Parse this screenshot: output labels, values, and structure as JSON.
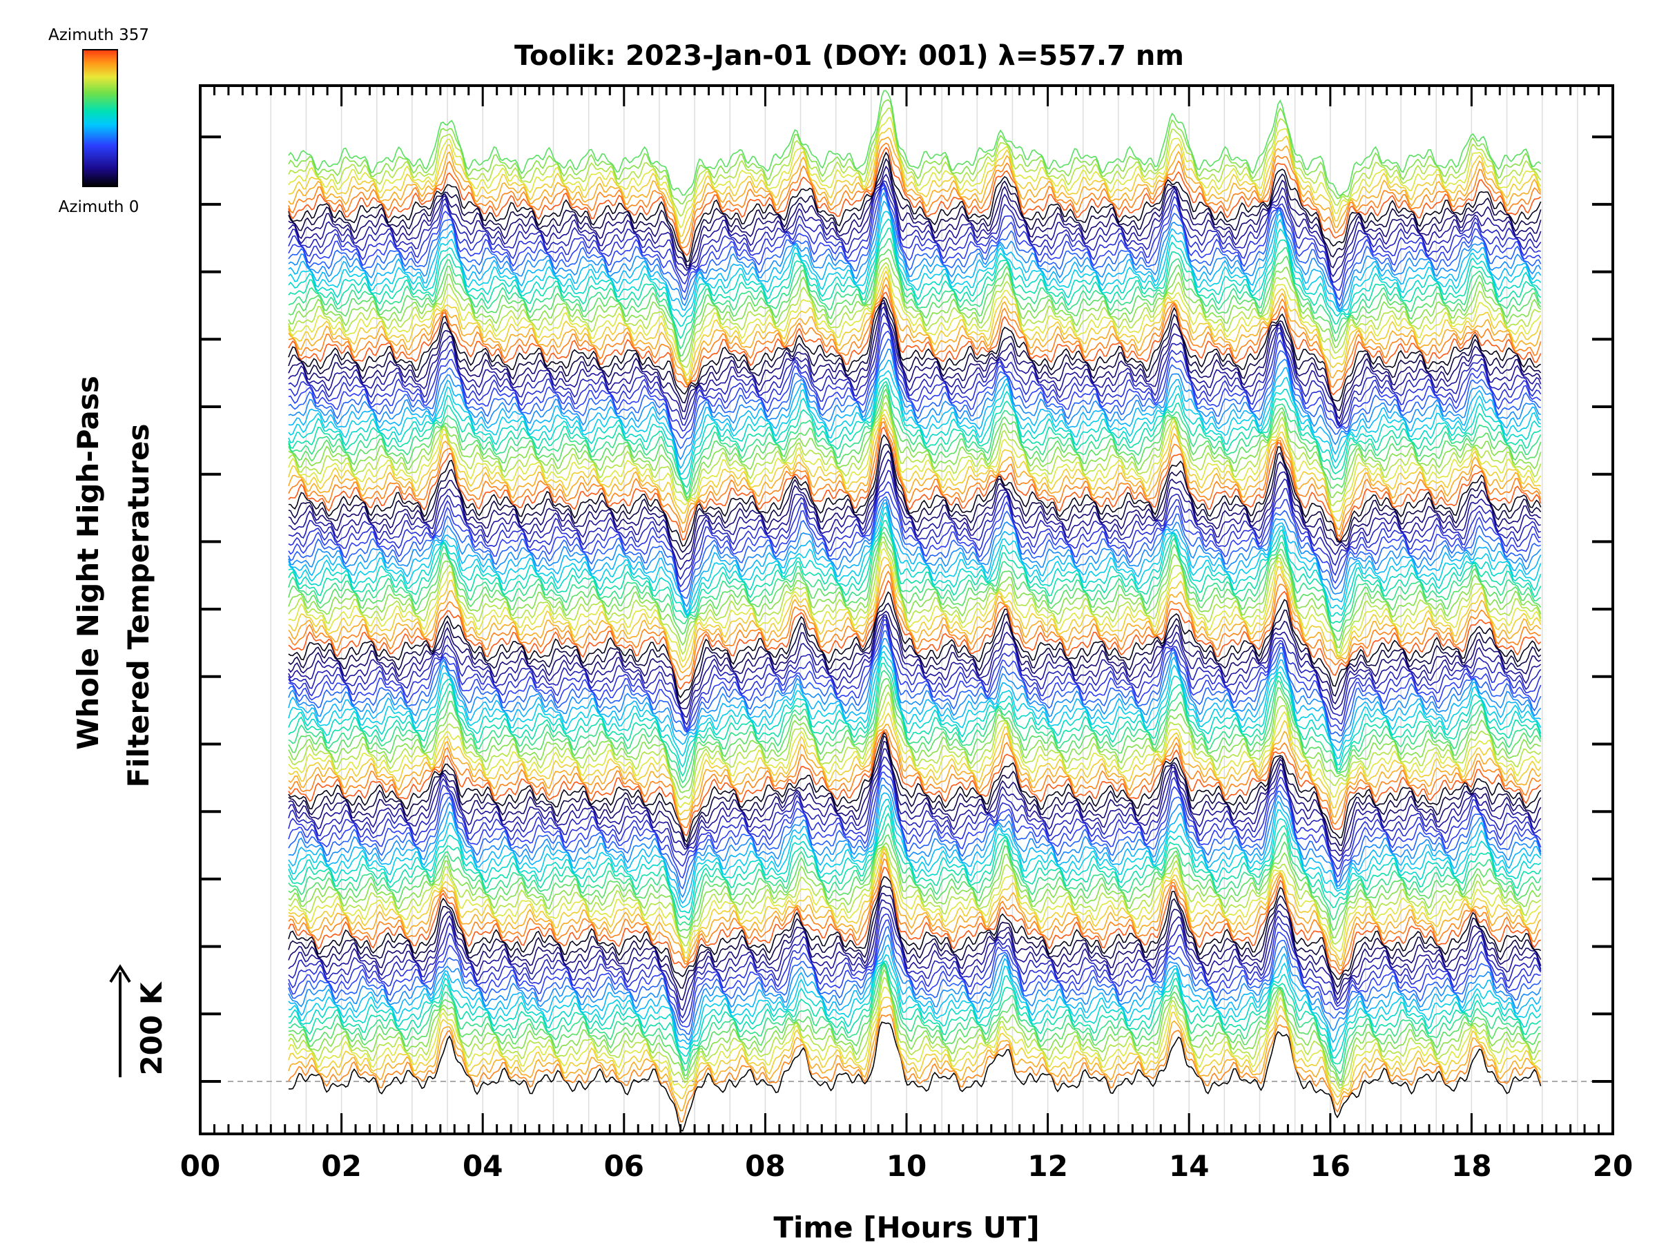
{
  "chart_data": {
    "type": "line",
    "title": "Toolik: 2023-Jan-01 (DOY: 001) λ=557.7 nm",
    "xlabel": "Time [Hours UT]",
    "ylabel_line1": "Whole Night High-Pass",
    "ylabel_line2": "Filtered Temperatures",
    "scale_label": "200 K",
    "xlim": [
      0,
      20
    ],
    "x_tick_labels": [
      "00",
      "02",
      "04",
      "06",
      "08",
      "10",
      "12",
      "14",
      "16",
      "18",
      "20"
    ],
    "x_start": 1.25,
    "x_end": 19.0,
    "grid": "vertical lines every 0.5 h",
    "baseline_dashed": true,
    "series_description": "Stacked high-pass filtered temperature traces, one per azimuth from 0 to 357, offset vertically",
    "colorbar": {
      "label_top": "Azimuth  357",
      "label_bottom": "Azimuth  0",
      "colors": [
        "#000000",
        "#1a0a8c",
        "#2b3fff",
        "#00c8ff",
        "#00e0b4",
        "#6ee04a",
        "#e8e838",
        "#ff9a18",
        "#ff3a10"
      ]
    },
    "common_features": [
      {
        "t": 3.5,
        "amp": 1.5
      },
      {
        "t": 6.85,
        "amp": -1.7
      },
      {
        "t": 8.5,
        "amp": 1.0
      },
      {
        "t": 9.7,
        "amp": 2.6
      },
      {
        "t": 11.4,
        "amp": 1.3
      },
      {
        "t": 13.8,
        "amp": 1.7
      },
      {
        "t": 15.3,
        "amp": 2.0
      },
      {
        "t": 16.1,
        "amp": -1.5
      },
      {
        "t": 18.1,
        "amp": 0.9
      }
    ]
  }
}
